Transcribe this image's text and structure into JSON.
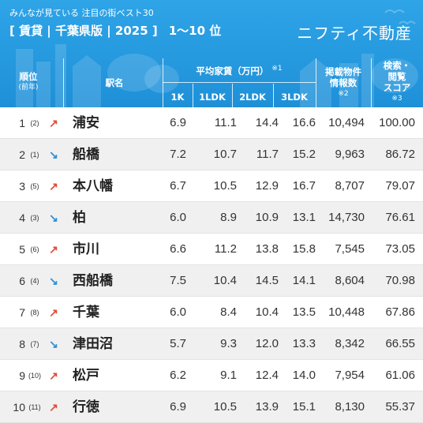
{
  "header": {
    "subtitle": "みんなが見ている 注目の街ベスト30",
    "title": "[ 賃貸 | 千葉県版 | 2025 ]",
    "range": "1〜10 位",
    "brand": "ニフティ不動産"
  },
  "columns": {
    "rank": "順位",
    "rank_sub": "(前年)",
    "station": "駅名",
    "rent_group": "平均家賃（万円）",
    "rent_note": "※1",
    "rent_1k": "1K",
    "rent_1ldk": "1LDK",
    "rent_2ldk": "2LDK",
    "rent_3ldk": "3LDK",
    "listings_line1": "掲載物件",
    "listings_line2": "情報数",
    "listings_note": "※2",
    "score_line1": "検索・",
    "score_line2": "閲覧",
    "score_line3": "スコア",
    "score_note": "※3"
  },
  "rows": [
    {
      "rank": "1",
      "prev": "(2)",
      "trend": "up",
      "station": "浦安",
      "r1k": "6.9",
      "r1ldk": "11.1",
      "r2ldk": "14.4",
      "r3ldk": "16.6",
      "listings": "10,494",
      "score": "100.00"
    },
    {
      "rank": "2",
      "prev": "(1)",
      "trend": "down",
      "station": "船橋",
      "r1k": "7.2",
      "r1ldk": "10.7",
      "r2ldk": "11.7",
      "r3ldk": "15.2",
      "listings": "9,963",
      "score": "86.72"
    },
    {
      "rank": "3",
      "prev": "(5)",
      "trend": "up",
      "station": "本八幡",
      "r1k": "6.7",
      "r1ldk": "10.5",
      "r2ldk": "12.9",
      "r3ldk": "16.7",
      "listings": "8,707",
      "score": "79.07"
    },
    {
      "rank": "4",
      "prev": "(3)",
      "trend": "down",
      "station": "柏",
      "r1k": "6.0",
      "r1ldk": "8.9",
      "r2ldk": "10.9",
      "r3ldk": "13.1",
      "listings": "14,730",
      "score": "76.61"
    },
    {
      "rank": "5",
      "prev": "(6)",
      "trend": "up",
      "station": "市川",
      "r1k": "6.6",
      "r1ldk": "11.2",
      "r2ldk": "13.8",
      "r3ldk": "15.8",
      "listings": "7,545",
      "score": "73.05"
    },
    {
      "rank": "6",
      "prev": "(4)",
      "trend": "down",
      "station": "西船橋",
      "r1k": "7.5",
      "r1ldk": "10.4",
      "r2ldk": "14.5",
      "r3ldk": "14.1",
      "listings": "8,604",
      "score": "70.98"
    },
    {
      "rank": "7",
      "prev": "(8)",
      "trend": "up",
      "station": "千葉",
      "r1k": "6.0",
      "r1ldk": "8.4",
      "r2ldk": "10.4",
      "r3ldk": "13.5",
      "listings": "10,448",
      "score": "67.86"
    },
    {
      "rank": "8",
      "prev": "(7)",
      "trend": "down",
      "station": "津田沼",
      "r1k": "5.7",
      "r1ldk": "9.3",
      "r2ldk": "12.0",
      "r3ldk": "13.3",
      "listings": "8,342",
      "score": "66.55"
    },
    {
      "rank": "9",
      "prev": "(10)",
      "trend": "up",
      "station": "松戸",
      "r1k": "6.2",
      "r1ldk": "9.1",
      "r2ldk": "12.4",
      "r3ldk": "14.0",
      "listings": "7,954",
      "score": "61.06"
    },
    {
      "rank": "10",
      "prev": "(11)",
      "trend": "up",
      "station": "行徳",
      "r1k": "6.9",
      "r1ldk": "10.5",
      "r2ldk": "13.9",
      "r3ldk": "15.1",
      "listings": "8,130",
      "score": "55.37"
    }
  ],
  "arrows": {
    "up": "↗",
    "down": "↘"
  },
  "colors": {
    "header_bg": "#1e90d8",
    "up": "#e24a3b",
    "down": "#2b8fd6",
    "alt_row": "#f0f0f0"
  }
}
